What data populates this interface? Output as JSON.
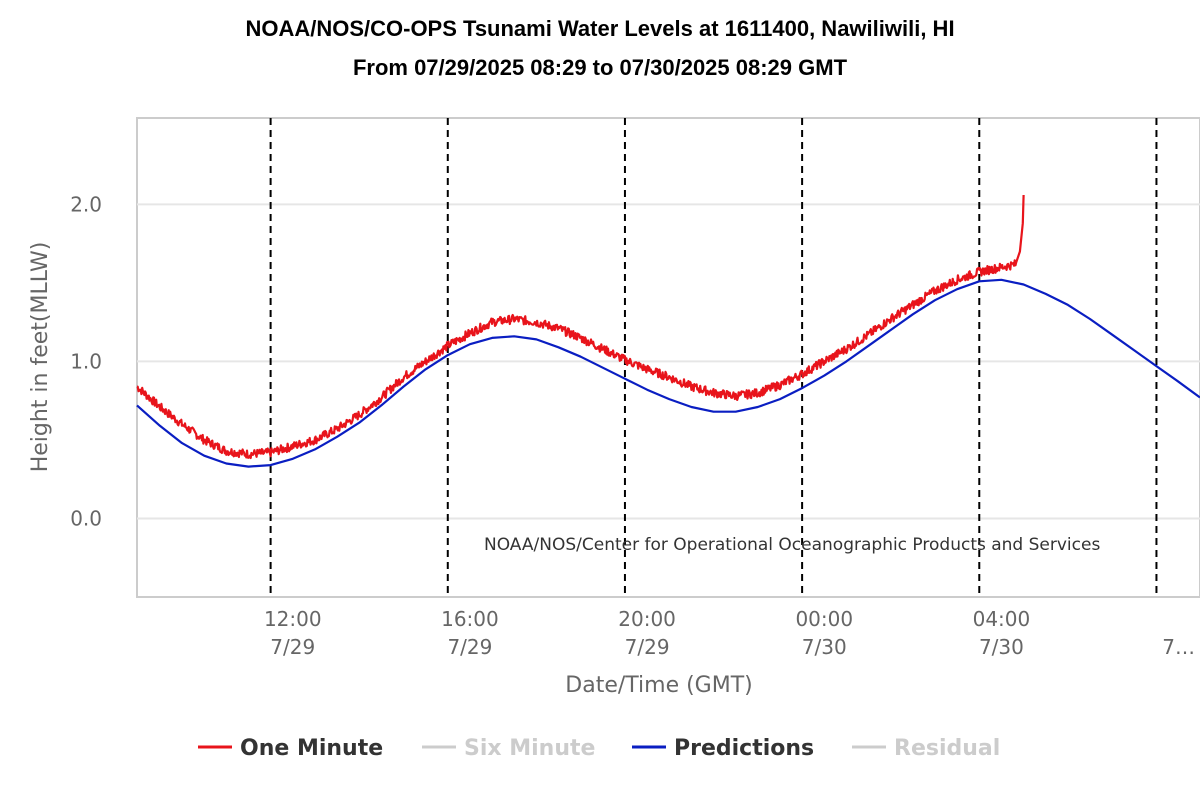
{
  "chart_data": {
    "type": "line",
    "title": "NOAA/NOS/CO-OPS Tsunami Water Levels at 1611400, Nawiliwili, HI",
    "subtitle": "From 07/29/2025 08:29 to 07/30/2025 08:29 GMT",
    "xlabel": "Date/Time (GMT)",
    "ylabel": "Height in feet(MLLW)",
    "ylim": [
      -0.5,
      2.55
    ],
    "xlim": [
      "2025-07-29 08:29",
      "2025-07-30 08:29"
    ],
    "y_ticks": [
      "0.0",
      "1.0",
      "2.0"
    ],
    "x_ticks": [
      {
        "time": "12:00",
        "date": "7/29"
      },
      {
        "time": "16:00",
        "date": "7/29"
      },
      {
        "time": "20:00",
        "date": "7/29"
      },
      {
        "time": "00:00",
        "date": "7/30"
      },
      {
        "time": "04:00",
        "date": "7/30"
      },
      {
        "time": "",
        "date": "7…"
      }
    ],
    "x_tick_times": [
      "2025-07-29 12:00",
      "2025-07-29 16:00",
      "2025-07-29 20:00",
      "2025-07-30 00:00",
      "2025-07-30 04:00",
      "2025-07-30 08:00"
    ],
    "grid": "horizontal",
    "vertical_markers": [
      "2025-07-29 11:30",
      "2025-07-29 15:30",
      "2025-07-29 19:30",
      "2025-07-29 23:30",
      "2025-07-30 03:30",
      "2025-07-30 07:30"
    ],
    "annotation": "NOAA/NOS/Center for Operational Oceanographic Products and Services",
    "legend_position": "bottom",
    "series": [
      {
        "name": "One Minute",
        "color": "#e8141b",
        "visible": true,
        "x": [
          "2025-07-29 08:29",
          "2025-07-29 09:00",
          "2025-07-29 09:30",
          "2025-07-29 10:00",
          "2025-07-29 10:30",
          "2025-07-29 11:00",
          "2025-07-29 11:30",
          "2025-07-29 12:00",
          "2025-07-29 12:30",
          "2025-07-29 13:00",
          "2025-07-29 13:30",
          "2025-07-29 14:00",
          "2025-07-29 14:30",
          "2025-07-29 15:00",
          "2025-07-29 15:30",
          "2025-07-29 16:00",
          "2025-07-29 16:30",
          "2025-07-29 17:00",
          "2025-07-29 17:30",
          "2025-07-29 18:00",
          "2025-07-29 18:30",
          "2025-07-29 19:00",
          "2025-07-29 19:30",
          "2025-07-29 20:00",
          "2025-07-29 20:30",
          "2025-07-29 21:00",
          "2025-07-29 21:30",
          "2025-07-29 22:00",
          "2025-07-29 22:30",
          "2025-07-29 23:00",
          "2025-07-29 23:30",
          "2025-07-30 00:00",
          "2025-07-30 00:30",
          "2025-07-30 01:00",
          "2025-07-30 01:30",
          "2025-07-30 02:00",
          "2025-07-30 02:30",
          "2025-07-30 03:00",
          "2025-07-30 03:30",
          "2025-07-30 04:00",
          "2025-07-30 04:20",
          "2025-07-30 04:25",
          "2025-07-30 04:29",
          "2025-07-30 04:30"
        ],
        "y": [
          0.84,
          0.71,
          0.6,
          0.5,
          0.43,
          0.41,
          0.42,
          0.46,
          0.5,
          0.57,
          0.66,
          0.77,
          0.9,
          1.0,
          1.1,
          1.18,
          1.25,
          1.27,
          1.25,
          1.21,
          1.15,
          1.08,
          1.01,
          0.95,
          0.9,
          0.84,
          0.8,
          0.78,
          0.8,
          0.85,
          0.92,
          1.0,
          1.08,
          1.17,
          1.27,
          1.36,
          1.45,
          1.52,
          1.57,
          1.6,
          1.62,
          1.7,
          1.88,
          2.06
        ]
      },
      {
        "name": "Six Minute",
        "color": "#cccccc",
        "visible": false,
        "x": [],
        "y": []
      },
      {
        "name": "Predictions",
        "color": "#0a1ec2",
        "visible": true,
        "x": [
          "2025-07-29 08:29",
          "2025-07-29 09:00",
          "2025-07-29 09:30",
          "2025-07-29 10:00",
          "2025-07-29 10:30",
          "2025-07-29 11:00",
          "2025-07-29 11:30",
          "2025-07-29 12:00",
          "2025-07-29 12:30",
          "2025-07-29 13:00",
          "2025-07-29 13:30",
          "2025-07-29 14:00",
          "2025-07-29 14:30",
          "2025-07-29 15:00",
          "2025-07-29 15:30",
          "2025-07-29 16:00",
          "2025-07-29 16:30",
          "2025-07-29 17:00",
          "2025-07-29 17:30",
          "2025-07-29 18:00",
          "2025-07-29 18:30",
          "2025-07-29 19:00",
          "2025-07-29 19:30",
          "2025-07-29 20:00",
          "2025-07-29 20:30",
          "2025-07-29 21:00",
          "2025-07-29 21:30",
          "2025-07-29 22:00",
          "2025-07-29 22:30",
          "2025-07-29 23:00",
          "2025-07-29 23:30",
          "2025-07-30 00:00",
          "2025-07-30 00:30",
          "2025-07-30 01:00",
          "2025-07-30 01:30",
          "2025-07-30 02:00",
          "2025-07-30 02:30",
          "2025-07-30 03:00",
          "2025-07-30 03:30",
          "2025-07-30 04:00",
          "2025-07-30 04:30",
          "2025-07-30 05:00",
          "2025-07-30 05:30",
          "2025-07-30 06:00",
          "2025-07-30 06:30",
          "2025-07-30 07:00",
          "2025-07-30 07:30",
          "2025-07-30 08:00",
          "2025-07-30 08:29"
        ],
        "y": [
          0.72,
          0.59,
          0.48,
          0.4,
          0.35,
          0.33,
          0.34,
          0.38,
          0.44,
          0.52,
          0.61,
          0.72,
          0.84,
          0.95,
          1.04,
          1.11,
          1.15,
          1.16,
          1.14,
          1.09,
          1.03,
          0.96,
          0.89,
          0.82,
          0.76,
          0.71,
          0.68,
          0.68,
          0.71,
          0.76,
          0.83,
          0.91,
          1.0,
          1.1,
          1.2,
          1.3,
          1.39,
          1.46,
          1.51,
          1.52,
          1.49,
          1.43,
          1.36,
          1.27,
          1.17,
          1.07,
          0.97,
          0.87,
          0.77
        ]
      },
      {
        "name": "Residual",
        "color": "#cccccc",
        "visible": false,
        "x": [],
        "y": []
      }
    ]
  }
}
